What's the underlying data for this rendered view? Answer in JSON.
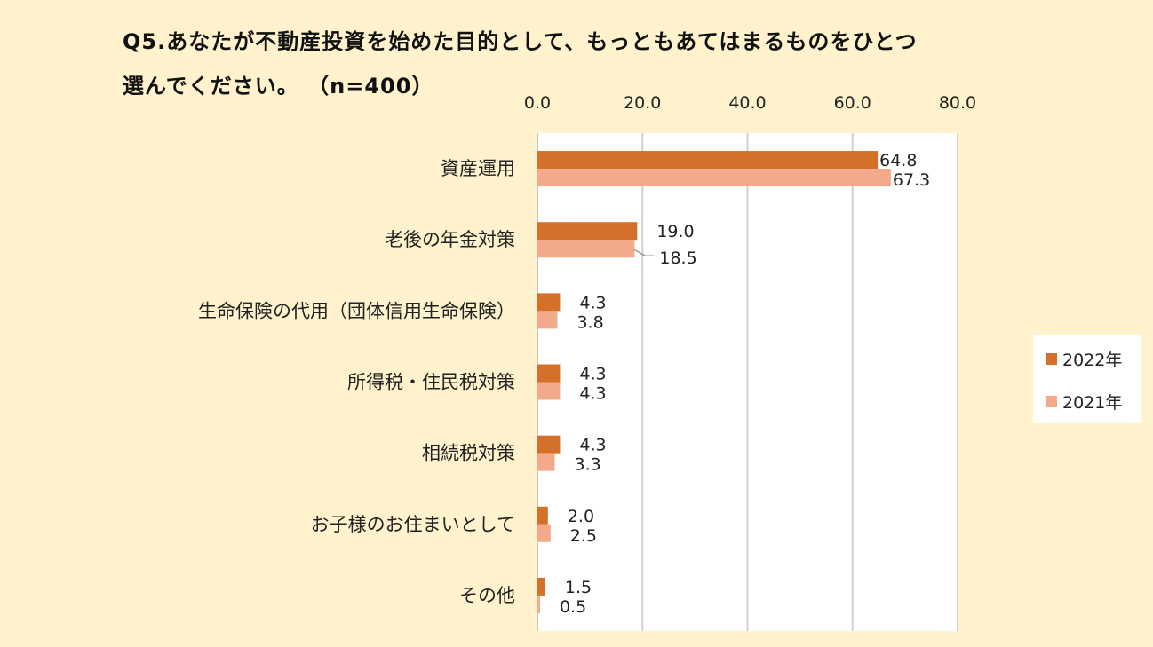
{
  "title": {
    "line1": "Q5.あなたが不動産投資を始めた目的として、もっともあてはまるものをひとつ",
    "line2": "選んでください。 （n=400）"
  },
  "chart_data": {
    "type": "bar",
    "orientation": "horizontal",
    "categories": [
      "資産運用",
      "老後の年金対策",
      "生命保険の代用（団体信用生命保険）",
      "所得税・住民税対策",
      "相続税対策",
      "お子様のお住まいとして",
      "その他"
    ],
    "series": [
      {
        "name": "2022年",
        "color": "#d4702a",
        "values": [
          64.8,
          19.0,
          4.3,
          4.3,
          4.3,
          2.0,
          1.5
        ]
      },
      {
        "name": "2021年",
        "color": "#f2aa8a",
        "values": [
          67.3,
          18.5,
          3.8,
          4.3,
          3.3,
          2.5,
          0.5
        ]
      }
    ],
    "xlim": [
      0,
      80
    ],
    "xticks": [
      "0.0",
      "20.0",
      "40.0",
      "60.0",
      "80.0"
    ],
    "axis_position": "top",
    "grid": true,
    "legend": "right"
  }
}
